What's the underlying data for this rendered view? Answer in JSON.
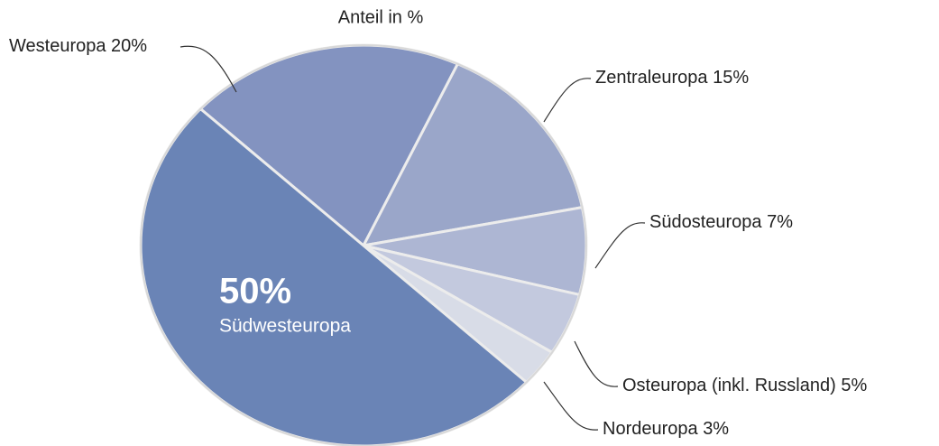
{
  "chart_data": {
    "type": "pie",
    "subtitle": "Anteil in %",
    "categories": [
      "Westeuropa",
      "Zentraleuropa",
      "Südosteuropa",
      "Osteuropa (inkl. Russland)",
      "Nordeuropa",
      "Südwesteuropa"
    ],
    "values": [
      20,
      15,
      7,
      5,
      3,
      50
    ],
    "value_labels": [
      "20%",
      "15%",
      "7%",
      "5%",
      "3%",
      "50%"
    ],
    "colors": [
      "#8393c0",
      "#9aa6c9",
      "#adb6d3",
      "#c3c9de",
      "#d8dce7",
      "#6a84b6"
    ]
  }
}
